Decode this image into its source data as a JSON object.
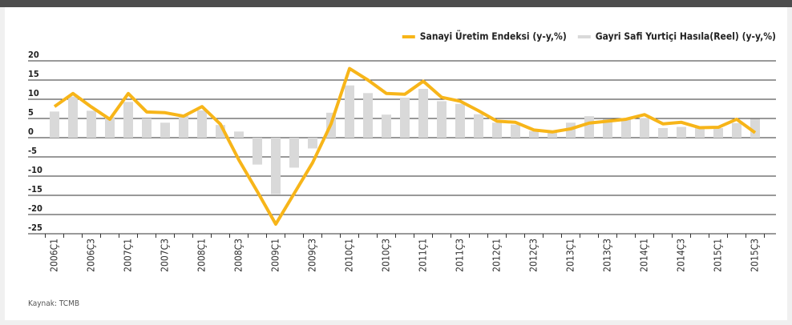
{
  "chart_data": {
    "type": "bar_line",
    "categories": [
      "2006Ç1",
      null,
      "2006Ç3",
      null,
      "2007Ç1",
      null,
      "2007Ç3",
      null,
      "2008Ç1",
      null,
      "2008Ç3",
      null,
      "2009Ç1",
      null,
      "2009Ç3",
      null,
      "2010Ç1",
      null,
      "2010Ç3",
      null,
      "2011Ç1",
      null,
      "2011Ç3",
      null,
      "2012Ç1",
      null,
      "2012Ç3",
      null,
      "2013Ç1",
      null,
      "2013Ç3",
      null,
      "2014Ç1",
      null,
      "2014Ç3",
      null,
      "2015Ç1",
      null,
      "2015Ç3"
    ],
    "series": [
      {
        "name": "Sanayi Üretim Endeksi (y-y,%)",
        "kind": "line",
        "color": "#f7b519",
        "values": [
          8.1,
          11.5,
          8,
          4.8,
          11.5,
          6.7,
          6.5,
          5.6,
          8.1,
          3.5,
          -5.8,
          -14,
          -22.5,
          -14.5,
          -6.5,
          3.6,
          18,
          15,
          11.5,
          11.3,
          14.7,
          10.5,
          9.5,
          7,
          4.3,
          4,
          2,
          1.5,
          2.3,
          3.8,
          4.3,
          4.8,
          6,
          3.6,
          4,
          2.6,
          2.7,
          4.8,
          1.3
        ]
      },
      {
        "name": "Gayri Safi Yurtiçi Hasıla(Reel) (y-y,%)",
        "kind": "bar",
        "color": "#d9d9d9",
        "values": [
          6.8,
          10.7,
          7,
          5.4,
          9.3,
          5,
          3.9,
          5.7,
          7.1,
          3.3,
          1.6,
          -7,
          -14.7,
          -7.8,
          -2.8,
          6.5,
          13.6,
          11.6,
          6,
          10.4,
          12.7,
          9.5,
          8.8,
          6.1,
          3.9,
          3.4,
          1.7,
          1.9,
          3.9,
          5.6,
          4.9,
          4.9,
          5.1,
          2.5,
          2.8,
          2.7,
          2.5,
          3.8,
          4.9
        ]
      }
    ],
    "ylim": [
      -25,
      20
    ],
    "yticks": [
      -25,
      -20,
      -15,
      -10,
      -5,
      0,
      5,
      10,
      15,
      20
    ],
    "grid": true,
    "legend": "top-right",
    "source": "Kaynak: TCMB"
  }
}
